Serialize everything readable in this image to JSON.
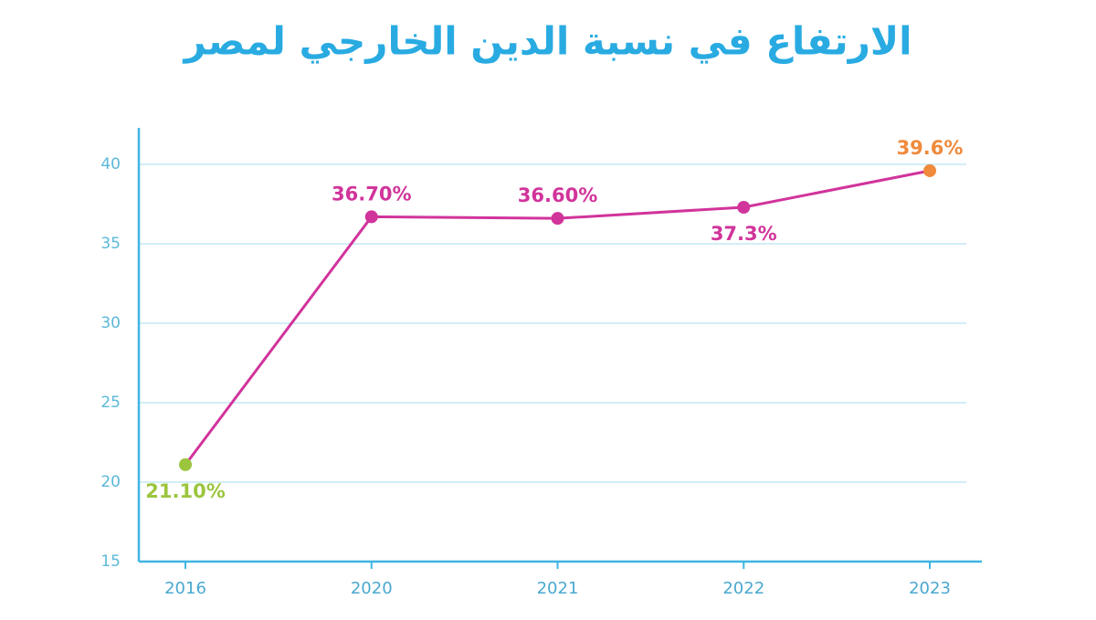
{
  "chart_data": {
    "type": "line",
    "title": "الارتفاع في نسبة الدين الخارجي لمصر",
    "categories": [
      "2016",
      "2020",
      "2021",
      "2022",
      "2023"
    ],
    "values": [
      21.1,
      36.7,
      36.6,
      37.3,
      39.6
    ],
    "value_labels": [
      "21.10%",
      "36.70%",
      "36.60%",
      "37.3%",
      "39.6%"
    ],
    "color": "#d1349b",
    "point_colors": [
      "#9bc53d",
      "#d1349b",
      "#d1349b",
      "#d1349b",
      "#f08a3c"
    ],
    "ylim": [
      15,
      42.3
    ],
    "yticks": [
      15,
      20,
      25,
      30,
      35,
      40
    ],
    "grid": true
  }
}
